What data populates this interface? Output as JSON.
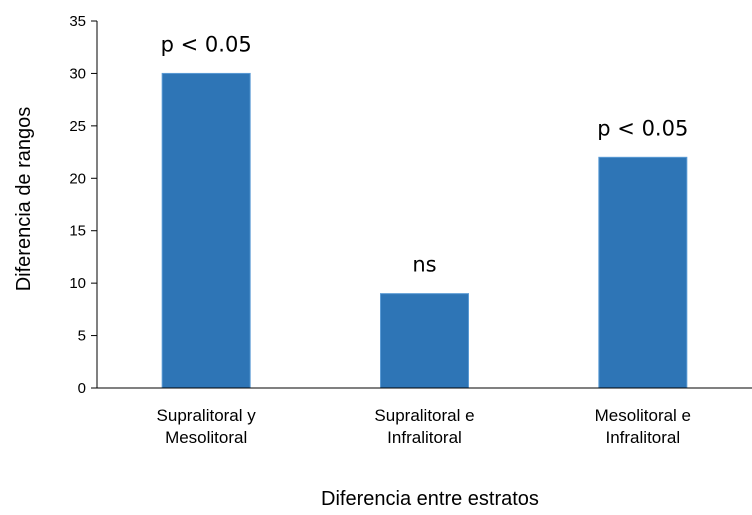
{
  "chart_data": {
    "type": "bar",
    "categories": [
      [
        "Supralitoral y",
        "Mesolitoral"
      ],
      [
        "Supralitoral e",
        "Infralitoral"
      ],
      [
        "Mesolitoral e",
        "Infralitoral"
      ]
    ],
    "values": [
      30,
      9,
      22
    ],
    "annotations": [
      "p < 0.05",
      "ns",
      "p < 0.05"
    ],
    "xlabel": "Diferencia entre estratos",
    "ylabel": "Diferencia de  rangos",
    "ylim": [
      0,
      35
    ],
    "yticks": [
      0,
      5,
      10,
      15,
      20,
      25,
      30,
      35
    ],
    "grid": false,
    "legend": "none",
    "bar_color": "#2E75B6",
    "bar_edge_color": "#5B9BD5",
    "axis_color": "#000000"
  }
}
